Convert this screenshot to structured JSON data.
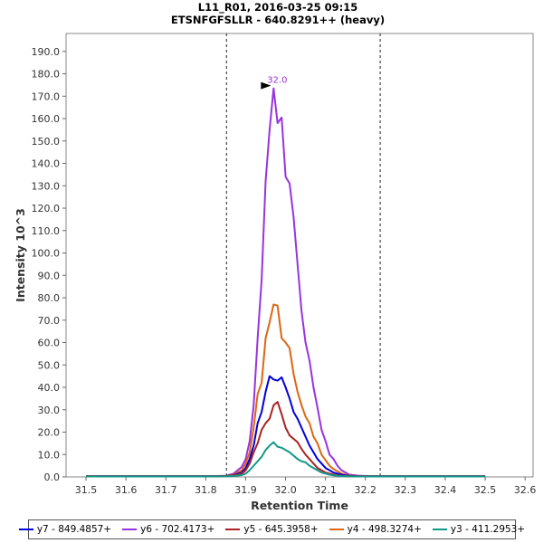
{
  "chart_data": {
    "type": "line",
    "title_line1": "L11_R01, 2016-03-25 09:15",
    "title_line2": "ETSNFGFSLLR - 640.8291++ (heavy)",
    "xlabel": "Retention Time",
    "ylabel": "Intensity 10^3",
    "xlim": [
      31.45,
      32.62
    ],
    "ylim": [
      0,
      198
    ],
    "xticks": [
      31.5,
      31.6,
      31.7,
      31.8,
      31.9,
      32.0,
      32.1,
      32.2,
      32.3,
      32.4,
      32.5,
      32.6
    ],
    "xtick_labels": [
      "31.5",
      "31.6",
      "31.7",
      "31.8",
      "31.9",
      "32.0",
      "32.1",
      "32.2",
      "32.3",
      "32.4",
      "32.5",
      "32.6"
    ],
    "yticks": [
      0,
      10,
      20,
      30,
      40,
      50,
      60,
      70,
      80,
      90,
      100,
      110,
      120,
      130,
      140,
      150,
      160,
      170,
      180,
      190
    ],
    "ytick_labels": [
      "0.0",
      "10.0",
      "20.0",
      "30.0",
      "40.0",
      "50.0",
      "60.0",
      "70.0",
      "80.0",
      "90.0",
      "100.0",
      "110.0",
      "120.0",
      "130.0",
      "140.0",
      "150.0",
      "160.0",
      "170.0",
      "180.0",
      "190.0"
    ],
    "boundaries": [
      31.852,
      32.237
    ],
    "peak_annotation": {
      "label": "32.0",
      "x": 31.97,
      "y": 173.5,
      "color": "#9933cc"
    },
    "x": [
      31.5,
      31.6,
      31.7,
      31.8,
      31.85,
      31.87,
      31.89,
      31.9,
      31.91,
      31.92,
      31.93,
      31.94,
      31.95,
      31.96,
      31.97,
      31.98,
      31.99,
      32.0,
      32.01,
      32.02,
      32.03,
      32.04,
      32.05,
      32.06,
      32.07,
      32.08,
      32.09,
      32.1,
      32.11,
      32.12,
      32.13,
      32.14,
      32.15,
      32.16,
      32.17,
      32.18,
      32.19,
      32.2,
      32.22,
      32.24,
      32.26,
      32.3,
      32.4,
      32.5
    ],
    "series": [
      {
        "name": "y6 - 702.4173+",
        "color": "#9933dd",
        "values": [
          0.3,
          0.3,
          0.3,
          0.3,
          0.5,
          1.5,
          4.5,
          8,
          16,
          32,
          62,
          88,
          132,
          155,
          173.5,
          158,
          160.5,
          134,
          131,
          116,
          95,
          74,
          60,
          52,
          40,
          31,
          21,
          16,
          10,
          8,
          5,
          3,
          2,
          1,
          0.8,
          0.6,
          0.5,
          0.4,
          0.3,
          0.3,
          0.3,
          0.3,
          0.3,
          0.3
        ]
      },
      {
        "name": "y4 - 498.3274+",
        "color": "#dd6611",
        "values": [
          0.3,
          0.3,
          0.3,
          0.3,
          0.4,
          1,
          3,
          6,
          11,
          22,
          37,
          42,
          62,
          69,
          77,
          76.5,
          62,
          60,
          57.5,
          46,
          38,
          32,
          27,
          24,
          18,
          15,
          10,
          7.5,
          5,
          3.5,
          2.5,
          1.5,
          1,
          0.7,
          0.5,
          0.4,
          0.3,
          0.3,
          0.3,
          0.3,
          0.3,
          0.3,
          0.3,
          0.3
        ]
      },
      {
        "name": "y7 - 849.4857+",
        "color": "#0000dd",
        "values": [
          0.3,
          0.3,
          0.3,
          0.3,
          0.4,
          0.8,
          2,
          4,
          8,
          14,
          24,
          29,
          38,
          45,
          43.5,
          43,
          44.5,
          40,
          35,
          29,
          26,
          22,
          18,
          14,
          11,
          8,
          6,
          4,
          3,
          2,
          1.5,
          1,
          0.7,
          0.5,
          0.4,
          0.3,
          0.3,
          0.3,
          0.3,
          0.3,
          0.3,
          0.3,
          0.3,
          0.3
        ]
      },
      {
        "name": "y5 - 645.3958+",
        "color": "#aa2222",
        "values": [
          0.3,
          0.3,
          0.3,
          0.3,
          0.4,
          0.7,
          1.5,
          3,
          6,
          11,
          15,
          21,
          24,
          26,
          32,
          33.5,
          28,
          22,
          18.5,
          17,
          15.5,
          12.5,
          10,
          8,
          6,
          4,
          3,
          2,
          1.5,
          1,
          0.7,
          0.5,
          0.4,
          0.3,
          0.3,
          0.3,
          0.3,
          0.3,
          0.3,
          0.3,
          0.3,
          0.3,
          0.3,
          0.3
        ]
      },
      {
        "name": "y3 - 411.2953+",
        "color": "#119988",
        "values": [
          0.2,
          0.2,
          0.2,
          0.2,
          0.3,
          0.4,
          0.8,
          1.5,
          3,
          5,
          7,
          9,
          12,
          14,
          15.5,
          13.5,
          13,
          12,
          11,
          9.5,
          8,
          7,
          6.5,
          5,
          4,
          3,
          2,
          1.5,
          1,
          0.7,
          0.5,
          0.4,
          0.3,
          0.3,
          0.2,
          0.2,
          0.2,
          0.2,
          0.2,
          0.2,
          0.2,
          0.2,
          0.2,
          0.2
        ]
      }
    ],
    "legend_order": [
      2,
      0,
      3,
      1,
      4
    ],
    "grid": false
  }
}
